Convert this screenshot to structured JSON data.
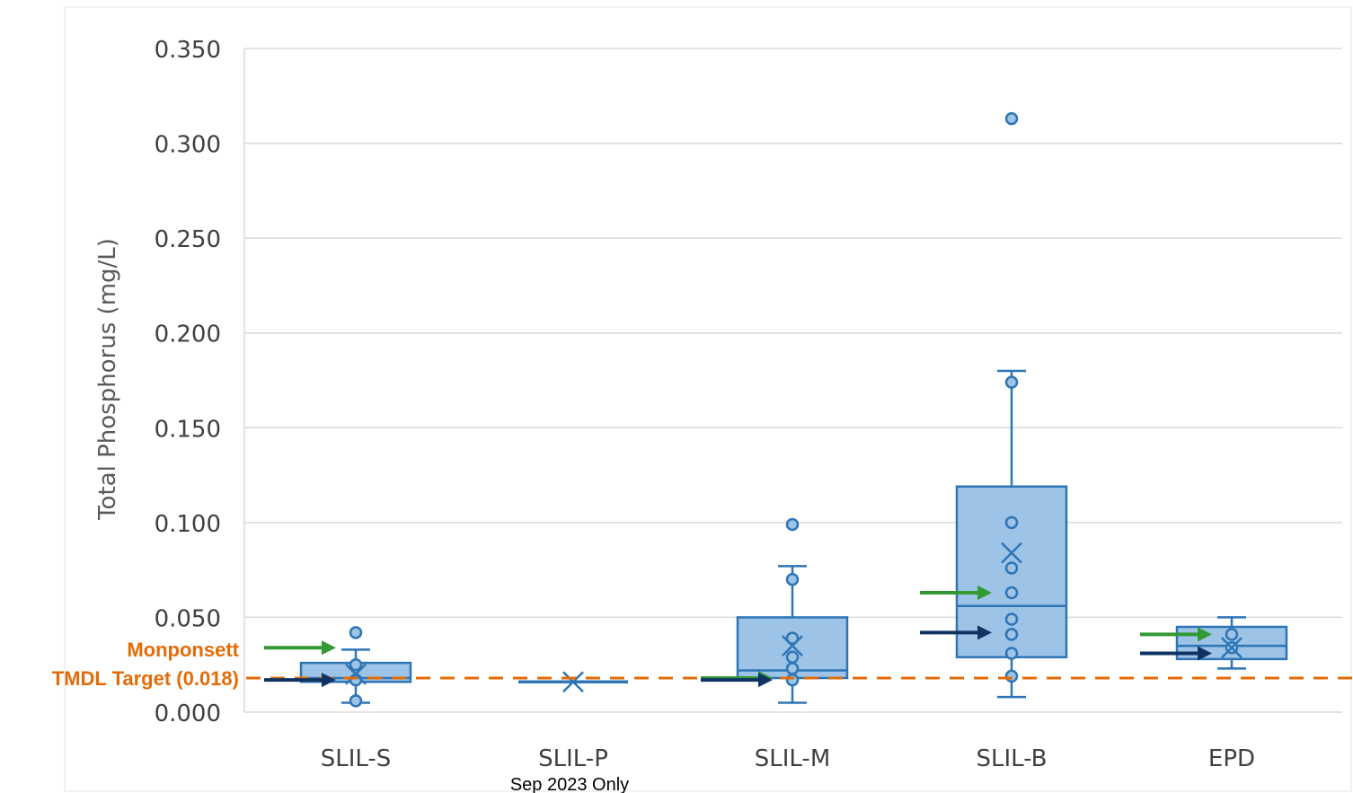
{
  "chart_data": {
    "type": "box",
    "ylabel": "Total Phosphorus (mg/L)",
    "ylim": [
      0,
      0.35
    ],
    "yticks": [
      "0.000",
      "0.050",
      "0.100",
      "0.150",
      "0.200",
      "0.250",
      "0.300",
      "0.350"
    ],
    "grid": true,
    "categories": [
      "SLIL-S",
      "SLIL-P",
      "SLIL-M",
      "SLIL-B",
      "EPD"
    ],
    "series": [
      {
        "category": "SLIL-S",
        "whisker_low": 0.005,
        "q1": 0.016,
        "median": 0.018,
        "q3": 0.026,
        "whisker_high": 0.033,
        "mean": 0.02,
        "points": [
          0.042,
          0.025,
          0.017,
          0.006
        ]
      },
      {
        "category": "SLIL-P",
        "whisker_low": 0.016,
        "q1": 0.016,
        "median": 0.016,
        "q3": 0.016,
        "whisker_high": 0.016,
        "mean": 0.016,
        "points": []
      },
      {
        "category": "SLIL-M",
        "whisker_low": 0.005,
        "q1": 0.018,
        "median": 0.022,
        "q3": 0.05,
        "whisker_high": 0.077,
        "mean": 0.035,
        "points": [
          0.099,
          0.07,
          0.039,
          0.029,
          0.023,
          0.017
        ]
      },
      {
        "category": "SLIL-B",
        "whisker_low": 0.008,
        "q1": 0.029,
        "median": 0.056,
        "q3": 0.119,
        "whisker_high": 0.18,
        "mean": 0.084,
        "points": [
          0.313,
          0.174,
          0.1,
          0.076,
          0.063,
          0.049,
          0.041,
          0.031,
          0.019
        ]
      },
      {
        "category": "EPD",
        "whisker_low": 0.023,
        "q1": 0.028,
        "median": 0.035,
        "q3": 0.045,
        "whisker_high": 0.05,
        "mean": 0.034,
        "points": [
          0.041,
          0.034
        ]
      }
    ],
    "reference_line": {
      "label": "TMDL Target (0.018)",
      "value": 0.018,
      "color": "#e36c09"
    },
    "annotations": {
      "monponsett": {
        "label": "Monponsett",
        "color": "#e36c09"
      },
      "note": "Sep 2023 Only",
      "green_arrows": [
        {
          "category": "SLIL-S",
          "value": 0.034
        },
        {
          "category": "SLIL-M",
          "value": 0.018
        },
        {
          "category": "SLIL-B",
          "value": 0.063
        },
        {
          "category": "EPD",
          "value": 0.041
        }
      ],
      "navy_arrows": [
        {
          "category": "SLIL-S",
          "value": 0.017
        },
        {
          "category": "SLIL-M",
          "value": 0.017
        },
        {
          "category": "SLIL-B",
          "value": 0.042
        },
        {
          "category": "EPD",
          "value": 0.031
        }
      ]
    },
    "colors": {
      "box_fill": "#9dc3e6",
      "box_stroke": "#2e75b6",
      "point_fill": "#9dc3e6",
      "green_arrow": "#339933",
      "navy_arrow": "#0f3464",
      "grid": "#d9d9d9"
    }
  }
}
